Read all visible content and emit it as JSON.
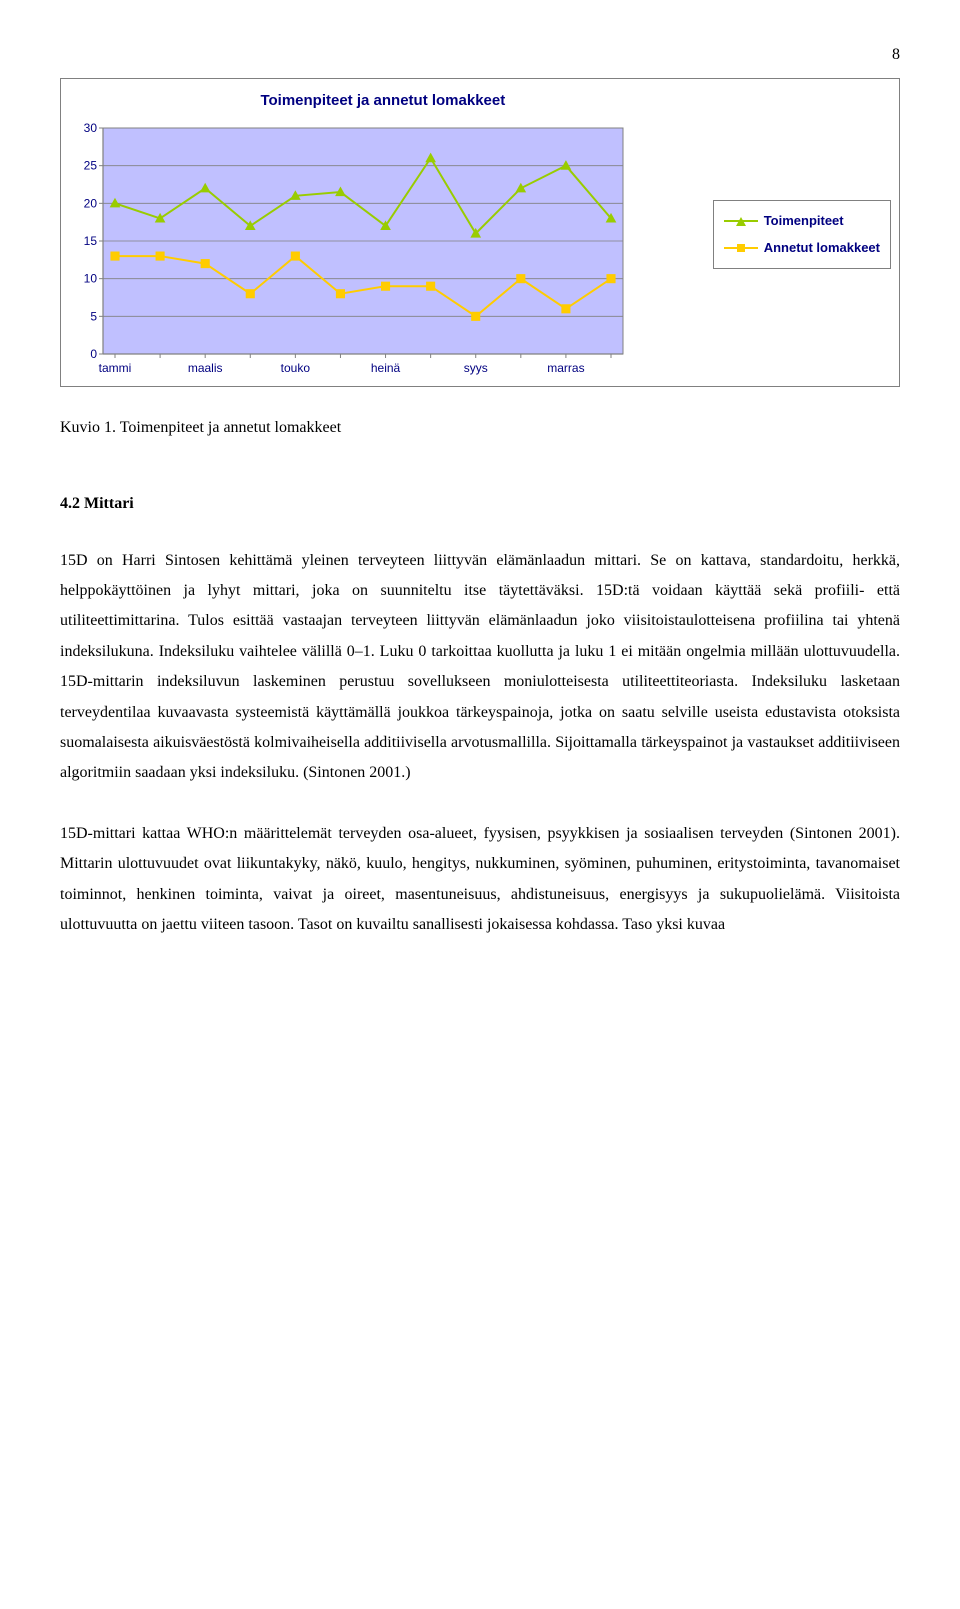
{
  "page_number": "8",
  "chart": {
    "type": "line",
    "title": "Toimenpiteet ja annetut lomakkeet",
    "title_fontsize": 15,
    "title_color": "#000080",
    "background_color": "#c0c0ff",
    "plot_border_color": "#808080",
    "grid_color": "#808080",
    "axis_color": "#808080",
    "axis_label_color": "#000080",
    "axis_fontsize": 12,
    "x_labels": [
      "tammi",
      "maalis",
      "touko",
      "heinä",
      "syys",
      "marras"
    ],
    "x_count": 12,
    "ylim": [
      0,
      30
    ],
    "ytick_step": 5,
    "series": [
      {
        "name": "Toimenpiteet",
        "color": "#99cc00",
        "marker": "triangle",
        "values": [
          20,
          18,
          22,
          17,
          21,
          21.5,
          17,
          26,
          16,
          22,
          25,
          18
        ]
      },
      {
        "name": "Annetut lomakkeet",
        "color": "#ffcc00",
        "marker": "square",
        "values": [
          13,
          13,
          12,
          8,
          13,
          8,
          9,
          9,
          5,
          10,
          6,
          10
        ]
      }
    ],
    "line_width": 2,
    "marker_size": 9
  },
  "caption": "Kuvio 1. Toimenpiteet ja annetut lomakkeet",
  "section_heading": "4.2 Mittari",
  "para1": "15D on Harri Sintosen kehittämä yleinen terveyteen liittyvän elämänlaadun mittari. Se on kattava, standardoitu, herkkä, helppokäyttöinen ja lyhyt mittari, joka on suunniteltu itse täytettäväksi. 15D:tä voidaan käyttää sekä profiili- että utiliteettimittarina. Tulos esittää vastaajan terveyteen liittyvän elämänlaadun joko viisitoistaulotteisena profiilina tai yhtenä indeksilukuna. Indeksiluku vaihtelee välillä 0–1. Luku 0 tarkoittaa kuollutta ja luku 1 ei mitään ongelmia millään ulottuvuudella. 15D-mittarin indeksiluvun laskeminen perustuu sovellukseen moniulotteisesta utiliteettiteoriasta. Indeksiluku lasketaan terveydentilaa kuvaavasta systeemistä käyttämällä joukkoa tärkeyspainoja, jotka on saatu selville useista edustavista otoksista suomalaisesta aikuisväestöstä kolmivaiheisella additiivisella arvotusmallilla. Sijoittamalla tärkeyspainot ja vastaukset additiiviseen algoritmiin saadaan yksi indeksiluku. (Sintonen 2001.)",
  "para2": "15D-mittari kattaa WHO:n määrittelemät terveyden osa-alueet, fyysisen, psyykkisen ja sosiaalisen terveyden (Sintonen 2001). Mittarin ulottuvuudet ovat liikuntakyky, näkö, kuulo, hengitys, nukkuminen, syöminen, puhuminen, eritystoiminta, tavanomaiset toiminnot, henkinen toiminta, vaivat ja oireet, masentuneisuus, ahdistuneisuus, energisyys ja sukupuolielämä. Viisitoista ulottuvuutta on jaettu viiteen tasoon. Tasot on kuvailtu sanallisesti jokaisessa kohdassa. Taso yksi kuvaa"
}
